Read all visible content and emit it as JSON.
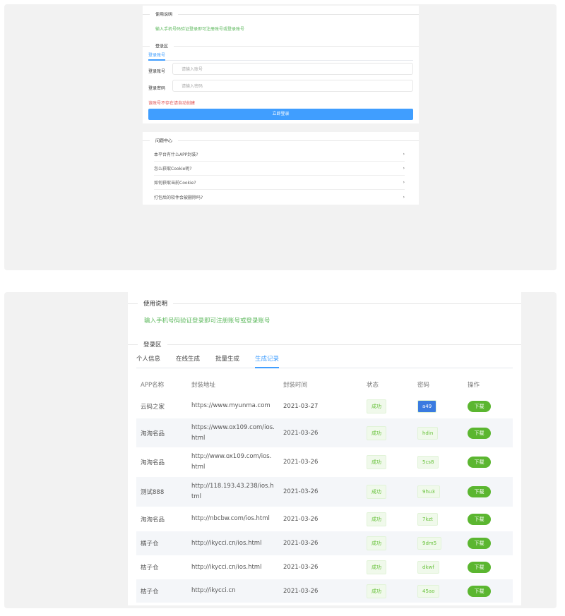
{
  "top": {
    "usage_title": "使用说明",
    "usage_text": "输入手机号码验证登录即可注册账号或登录账号",
    "login_title": "登录区",
    "tab": "登录账号",
    "account_label": "登录账号",
    "account_placeholder": "请输入账号",
    "password_label": "登录密码",
    "password_placeholder": "请输入密码",
    "error": "该账号不存在请自动创建",
    "login_button": "立即登录",
    "faq_title": "问题中心",
    "faq": [
      "本平台有什么APP封装?",
      "怎么获取Cookie呢?",
      "如何获取当前Cookie?",
      "打包后的软件会被删除吗?"
    ]
  },
  "bottom": {
    "usage_title": "使用说明",
    "usage_text": "输入手机号码验证登录即可注册账号或登录账号",
    "login_title": "登录区",
    "tabs": [
      "个人信息",
      "在线生成",
      "批量生成",
      "生成记录"
    ],
    "headers": [
      "APP名称",
      "封装地址",
      "封装时间",
      "状态",
      "密码",
      "操作"
    ],
    "rows": [
      {
        "name": "云码之家",
        "url": "https://www.myunma.com",
        "time": "2021-03-27",
        "status": "成功",
        "pwd": "a49",
        "action": "下载"
      },
      {
        "name": "淘淘名品",
        "url": "https://www.ox109.com/ios.html",
        "time": "2021-03-26",
        "status": "成功",
        "pwd": "hdin",
        "action": "下载"
      },
      {
        "name": "淘淘名品",
        "url": "http://www.ox109.com/ios.html",
        "time": "2021-03-26",
        "status": "成功",
        "pwd": "5cs8",
        "action": "下载"
      },
      {
        "name": "测试888",
        "url": "http://118.193.43.238/ios.html",
        "time": "2021-03-26",
        "status": "成功",
        "pwd": "9hu3",
        "action": "下载"
      },
      {
        "name": "淘淘名品",
        "url": "http://nbcbw.com/ios.html",
        "time": "2021-03-26",
        "status": "成功",
        "pwd": "7kzt",
        "action": "下载"
      },
      {
        "name": "橘子仓",
        "url": "http://ikycci.cn/ios.html",
        "time": "2021-03-26",
        "status": "成功",
        "pwd": "9dm5",
        "action": "下载"
      },
      {
        "name": "桔子仓",
        "url": "http://ikycci.cn/ios.html",
        "time": "2021-03-26",
        "status": "成功",
        "pwd": "dkwf",
        "action": "下载"
      },
      {
        "name": "桔子仓",
        "url": "http://ikycci.cn",
        "time": "2021-03-26",
        "status": "成功",
        "pwd": "45ao",
        "action": "下载"
      }
    ]
  },
  "colors": {
    "accent": "#409eff",
    "success": "#5bb630",
    "error": "#e05050"
  }
}
